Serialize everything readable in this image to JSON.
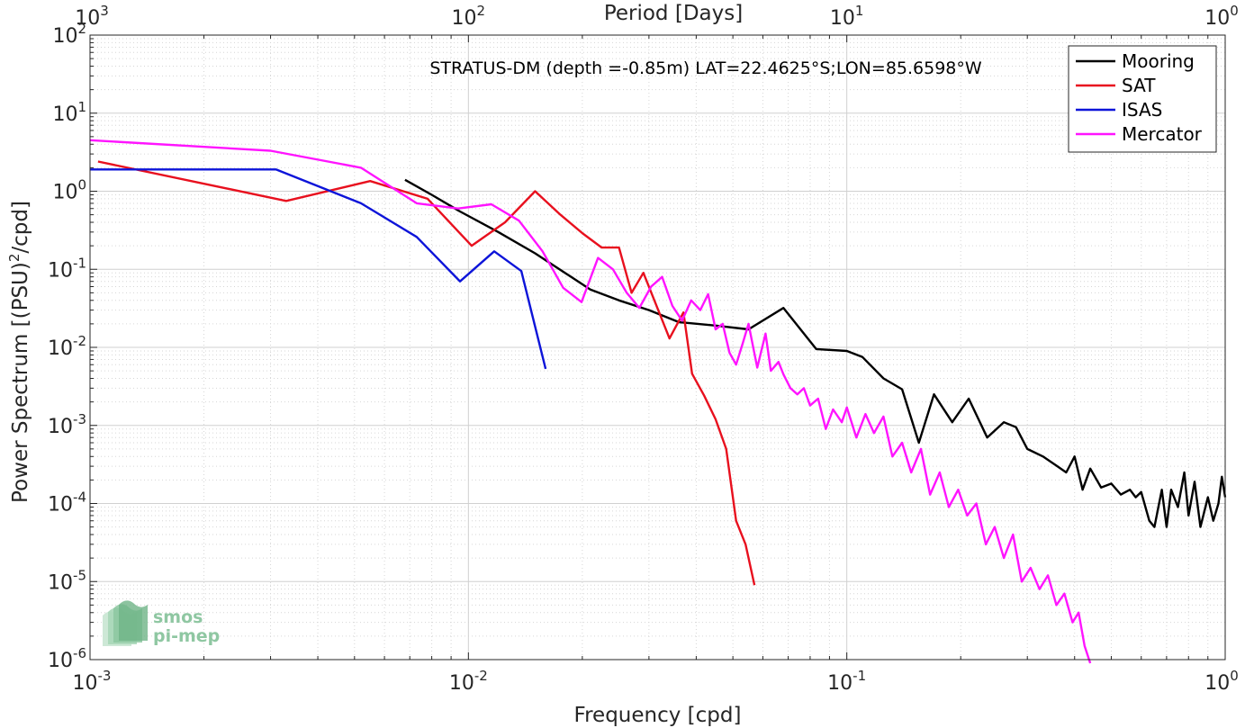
{
  "chart_data": {
    "type": "line",
    "title": "STRATUS-DM (depth =-0.85m) LAT=22.4625°S;LON=85.6598°W",
    "xlabel": "Frequency [cpd]",
    "ylabel": "Power Spectrum [(PSU)²/cpd]",
    "ylabel_main": "Power Spectrum [(PSU)",
    "ylabel_sup": "2",
    "ylabel_tail": "/cpd]",
    "top_xlabel": "Period [Days]",
    "x_scale": "log",
    "y_scale": "log",
    "xlim": [
      0.001,
      1
    ],
    "ylim": [
      1e-06,
      100
    ],
    "grid": true,
    "legend_position": "top-right",
    "x_ticks": [
      {
        "value": 0.001,
        "base": "10",
        "exp": "-3"
      },
      {
        "value": 0.01,
        "base": "10",
        "exp": "-2"
      },
      {
        "value": 0.1,
        "base": "10",
        "exp": "-1"
      },
      {
        "value": 1,
        "base": "10",
        "exp": "0"
      }
    ],
    "top_ticks": [
      {
        "value": 0.001,
        "base": "10",
        "exp": "3"
      },
      {
        "value": 0.01,
        "base": "10",
        "exp": "2"
      },
      {
        "value": 0.1,
        "base": "10",
        "exp": "1"
      },
      {
        "value": 1,
        "base": "10",
        "exp": "0"
      }
    ],
    "y_ticks": [
      {
        "value": 100,
        "base": "10",
        "exp": "2"
      },
      {
        "value": 10,
        "base": "10",
        "exp": "1"
      },
      {
        "value": 1,
        "base": "10",
        "exp": "0"
      },
      {
        "value": 0.1,
        "base": "10",
        "exp": "-1"
      },
      {
        "value": 0.01,
        "base": "10",
        "exp": "-2"
      },
      {
        "value": 0.001,
        "base": "10",
        "exp": "-3"
      },
      {
        "value": 0.0001,
        "base": "10",
        "exp": "-4"
      },
      {
        "value": 1e-05,
        "base": "10",
        "exp": "-5"
      },
      {
        "value": 1e-06,
        "base": "10",
        "exp": "-6"
      }
    ],
    "series": [
      {
        "name": "Mooring",
        "color": "#000000",
        "x": [
          0.0068,
          0.008,
          0.0095,
          0.012,
          0.015,
          0.018,
          0.021,
          0.025,
          0.03,
          0.036,
          0.045,
          0.055,
          0.068,
          0.083,
          0.1,
          0.11,
          0.125,
          0.14,
          0.155,
          0.17,
          0.19,
          0.21,
          0.235,
          0.26,
          0.28,
          0.3,
          0.33,
          0.36,
          0.38,
          0.4,
          0.42,
          0.44,
          0.47,
          0.5,
          0.53,
          0.56,
          0.58,
          0.6,
          0.63,
          0.65,
          0.68,
          0.7,
          0.72,
          0.75,
          0.78,
          0.8,
          0.83,
          0.86,
          0.9,
          0.93,
          0.96,
          0.98,
          1.0
        ],
        "y": [
          1.4,
          0.9,
          0.55,
          0.3,
          0.16,
          0.09,
          0.055,
          0.04,
          0.03,
          0.021,
          0.019,
          0.017,
          0.032,
          0.0095,
          0.009,
          0.0075,
          0.004,
          0.0029,
          0.0006,
          0.0025,
          0.0011,
          0.0022,
          0.0007,
          0.0011,
          0.00095,
          0.0005,
          0.0004,
          0.0003,
          0.00025,
          0.0004,
          0.00015,
          0.00028,
          0.00016,
          0.00018,
          0.00013,
          0.00015,
          0.00012,
          0.00014,
          6e-05,
          5e-05,
          0.00015,
          5e-05,
          0.00015,
          9e-05,
          0.00025,
          7e-05,
          0.00019,
          5e-05,
          0.00012,
          6e-05,
          0.0001,
          0.00022,
          0.00012
        ]
      },
      {
        "name": "SAT",
        "color": "#e8101e",
        "x": [
          0.00105,
          0.0033,
          0.0055,
          0.0078,
          0.0102,
          0.0125,
          0.015,
          0.0175,
          0.02,
          0.0225,
          0.025,
          0.027,
          0.029,
          0.031,
          0.034,
          0.037,
          0.039,
          0.042,
          0.045,
          0.048,
          0.051,
          0.054,
          0.057
        ],
        "y": [
          2.4,
          0.75,
          1.35,
          0.8,
          0.2,
          0.4,
          1.0,
          0.5,
          0.29,
          0.19,
          0.19,
          0.05,
          0.09,
          0.04,
          0.013,
          0.028,
          0.0046,
          0.0024,
          0.0012,
          0.0005,
          6e-05,
          3e-05,
          9e-06
        ]
      },
      {
        "name": "ISAS",
        "color": "#0d14d9",
        "x": [
          0.001,
          0.0031,
          0.0052,
          0.0073,
          0.0095,
          0.0117,
          0.0138,
          0.016
        ],
        "y": [
          1.9,
          1.9,
          0.7,
          0.26,
          0.07,
          0.17,
          0.095,
          0.0053
        ]
      },
      {
        "name": "Mercator",
        "color": "#ff14ff",
        "x": [
          0.001,
          0.003,
          0.0052,
          0.0073,
          0.0094,
          0.0115,
          0.0136,
          0.0157,
          0.0178,
          0.0199,
          0.022,
          0.0241,
          0.0262,
          0.0283,
          0.0304,
          0.0325,
          0.0346,
          0.0367,
          0.0388,
          0.041,
          0.043,
          0.045,
          0.047,
          0.049,
          0.051,
          0.053,
          0.055,
          0.058,
          0.061,
          0.063,
          0.066,
          0.068,
          0.071,
          0.074,
          0.077,
          0.08,
          0.084,
          0.088,
          0.092,
          0.097,
          0.1,
          0.106,
          0.112,
          0.118,
          0.125,
          0.132,
          0.14,
          0.148,
          0.157,
          0.166,
          0.176,
          0.186,
          0.197,
          0.208,
          0.22,
          0.233,
          0.246,
          0.26,
          0.275,
          0.29,
          0.306,
          0.323,
          0.34,
          0.358,
          0.376,
          0.395,
          0.41,
          0.425,
          0.44
        ],
        "y": [
          4.5,
          3.3,
          2.0,
          0.7,
          0.6,
          0.68,
          0.42,
          0.17,
          0.058,
          0.038,
          0.14,
          0.1,
          0.05,
          0.032,
          0.06,
          0.08,
          0.034,
          0.022,
          0.04,
          0.03,
          0.048,
          0.017,
          0.02,
          0.0085,
          0.006,
          0.011,
          0.02,
          0.0055,
          0.015,
          0.005,
          0.0065,
          0.0045,
          0.003,
          0.0025,
          0.003,
          0.0018,
          0.0022,
          0.0009,
          0.0016,
          0.0011,
          0.0017,
          0.0007,
          0.0014,
          0.0008,
          0.0013,
          0.0004,
          0.0006,
          0.00025,
          0.0005,
          0.00013,
          0.00025,
          9e-05,
          0.00015,
          7e-05,
          0.0001,
          3e-05,
          5e-05,
          2e-05,
          4e-05,
          1e-05,
          1.5e-05,
          8e-06,
          1.2e-05,
          5e-06,
          7e-06,
          3e-06,
          4e-06,
          1.5e-06,
          9e-07
        ]
      }
    ]
  },
  "logo": {
    "line1": "smos",
    "line2": "pi-mep"
  }
}
